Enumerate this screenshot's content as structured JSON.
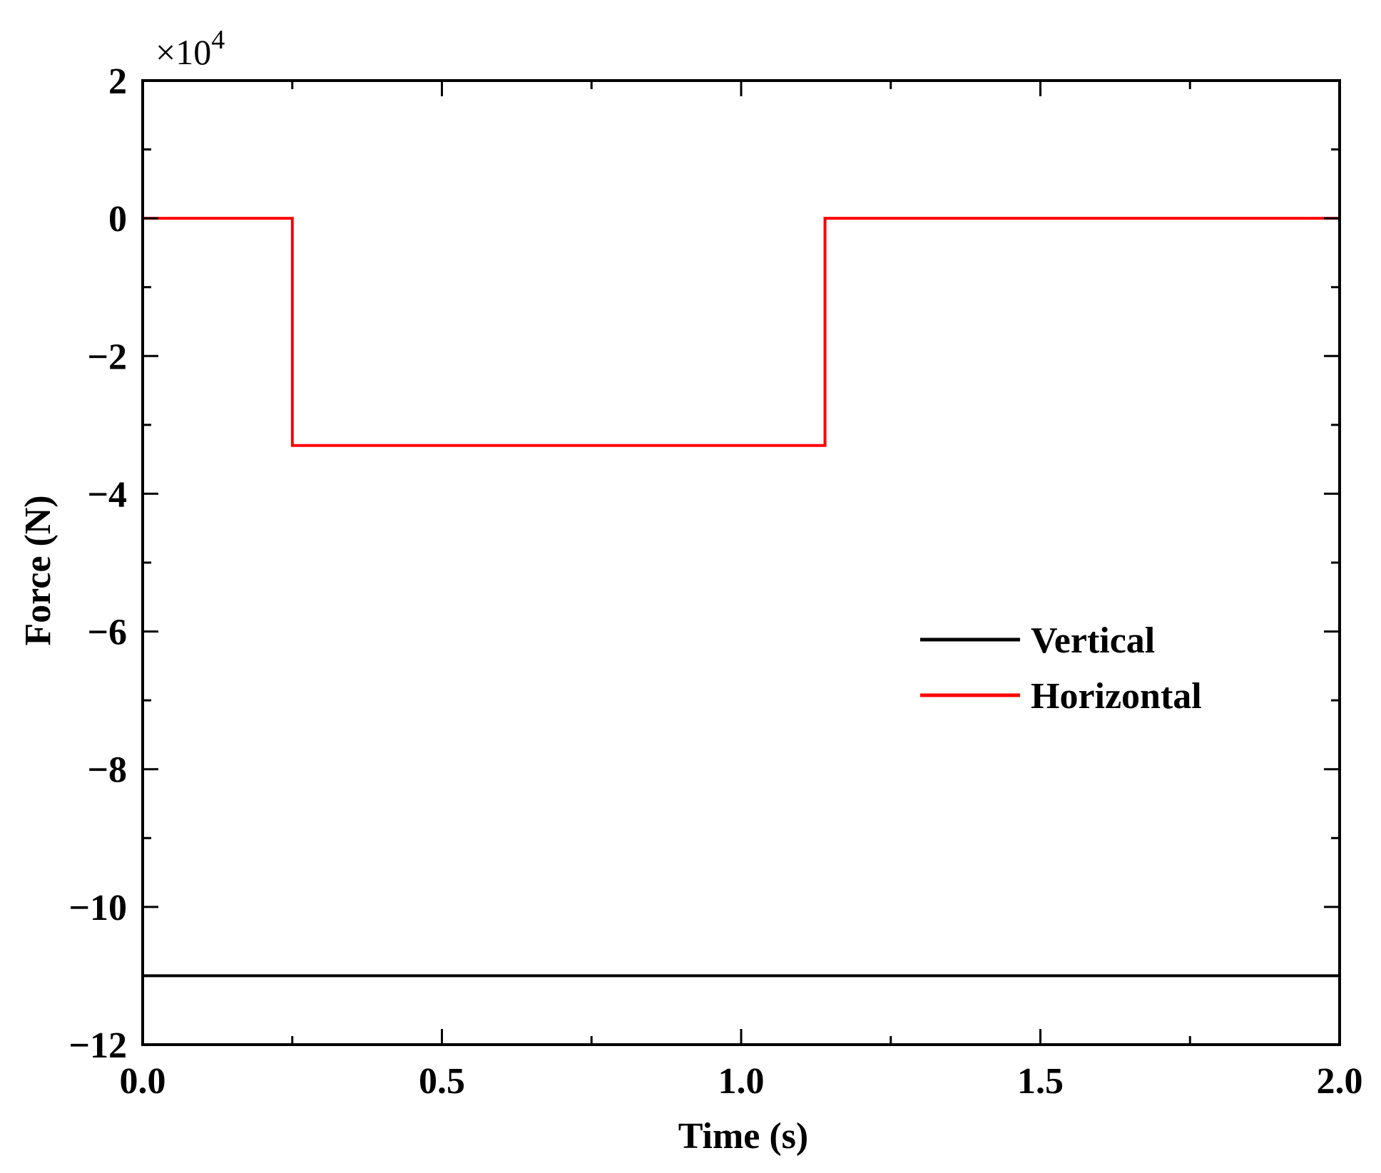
{
  "chart_data": {
    "type": "line",
    "xlabel": "Time (s)",
    "ylabel": "Force (N)",
    "y_multiplier": "×10",
    "y_multiplier_exponent": "4",
    "xlim": [
      0,
      2
    ],
    "ylim": [
      -12,
      2
    ],
    "x_ticks": [
      "0.0",
      "0.5",
      "1.0",
      "1.5",
      "2.0"
    ],
    "x_tick_values": [
      0,
      0.5,
      1.0,
      1.5,
      2.0
    ],
    "x_minor_tick_values": [
      0.25,
      0.75,
      1.25,
      1.75
    ],
    "y_ticks": [
      "2",
      "0",
      "−2",
      "−4",
      "−6",
      "−8",
      "−10",
      "−12"
    ],
    "y_tick_values": [
      2,
      0,
      -2,
      -4,
      -6,
      -8,
      -10,
      -12
    ],
    "y_minor_tick_values": [
      1,
      -1,
      -3,
      -5,
      -7,
      -9,
      -11
    ],
    "grid": false,
    "legend_position": "center-right",
    "series": [
      {
        "name": "Vertical",
        "color": "#000000",
        "x": [
          0,
          2
        ],
        "y": [
          -11,
          -11
        ]
      },
      {
        "name": "Horizontal",
        "color": "#ff0000",
        "x": [
          0,
          0.25,
          0.25,
          1.14,
          1.14,
          2
        ],
        "y": [
          0,
          0,
          -3.3,
          -3.3,
          0,
          0
        ]
      }
    ]
  }
}
